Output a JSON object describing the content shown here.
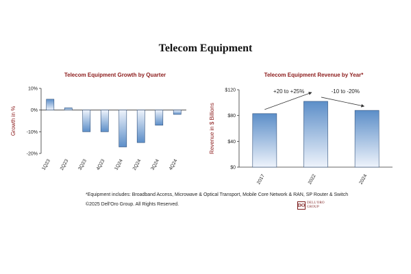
{
  "title": "Telecom Equipment",
  "footnote": "*Equipment includes: Broadband Access, Microwave & Optical Transport, Mobile Core Network & RAN, SP Router & Switch",
  "copyright": "©2025 Dell'Oro Group. All Rights Reserved.",
  "logo": {
    "mark": "DO",
    "line1": "DELL'ORO",
    "line2": "GROUP"
  },
  "colors": {
    "bar_top": "#5c8ec8",
    "bar_bottom": "#eef3fb",
    "bar_stroke": "#2f4f7a",
    "title": "#8b1a1a"
  },
  "chart_data": [
    {
      "type": "bar",
      "title": "Telecom Equipment Growth by Quarter",
      "ylabel": "Growth in %",
      "xlabel": "",
      "categories": [
        "1Q23",
        "2Q23",
        "3Q23",
        "4Q23",
        "1Q24",
        "2Q24",
        "3Q24",
        "4Q24"
      ],
      "values": [
        5,
        1,
        -10,
        -10,
        -17,
        -15,
        -7,
        -2
      ],
      "ylim": [
        -20,
        10
      ],
      "yticks": [
        10,
        0,
        -10,
        -20
      ],
      "ytick_labels": [
        "10%",
        "0%",
        "-10%",
        "-20%"
      ],
      "grid": false
    },
    {
      "type": "bar",
      "title": "Telecom Equipment Revenue by Year*",
      "ylabel": "Revenue in $ Billions",
      "xlabel": "",
      "categories": [
        "2017",
        "2022",
        "2024"
      ],
      "values": [
        83,
        102,
        88
      ],
      "ylim": [
        0,
        120
      ],
      "yticks": [
        0,
        40,
        80,
        120
      ],
      "ytick_labels": [
        "$0",
        "$40",
        "$80",
        "$120"
      ],
      "grid": false,
      "annotations": [
        {
          "text": "+20 to +25%",
          "from": "2017",
          "to": "2022"
        },
        {
          "text": "-10 to -20%",
          "from": "2022",
          "to": "2024"
        }
      ]
    }
  ]
}
